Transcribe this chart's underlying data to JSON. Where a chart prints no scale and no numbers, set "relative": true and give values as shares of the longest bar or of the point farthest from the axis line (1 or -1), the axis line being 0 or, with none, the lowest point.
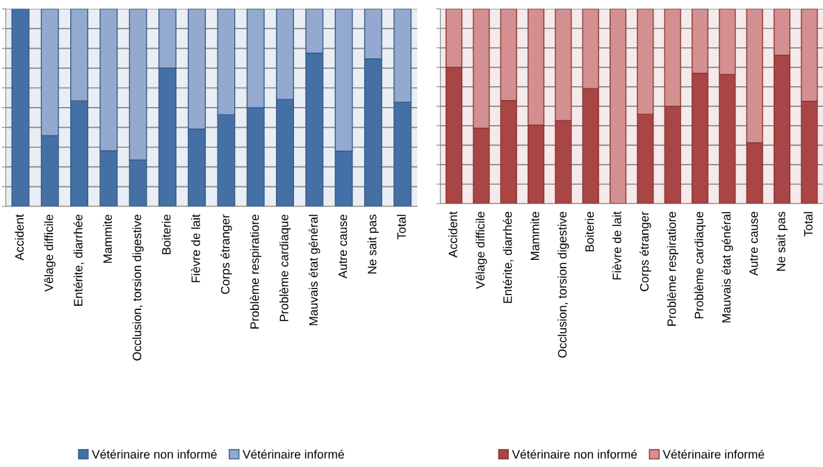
{
  "chart_data": [
    {
      "type": "bar",
      "stacked": true,
      "relative": true,
      "grid": "y",
      "legend": "bottom",
      "tick_labels": "x",
      "categories": [
        "Accident",
        "Vêlage difficile",
        "Entérite, diarrhée",
        "Mammite",
        "Occlusion, torsion digestive",
        "Boiterie",
        "Fièvre de lait",
        "Corps étranger",
        "Problème respiratiore",
        "Problème cardiaque",
        "Mauvais état général",
        "Autre cause",
        "Ne sait pas",
        "Total"
      ],
      "series": [
        {
          "name": "Vétérinaire non informé",
          "color": "#4470a5",
          "values": [
            1.0,
            0.358,
            0.534,
            0.282,
            0.235,
            0.7,
            0.392,
            0.464,
            0.5,
            0.541,
            0.776,
            0.28,
            0.747,
            0.527
          ]
        },
        {
          "name": "Vétérinaire informé",
          "color": "#93a9d0",
          "values": [
            0.0,
            0.642,
            0.466,
            0.718,
            0.765,
            0.3,
            0.608,
            0.536,
            0.5,
            0.459,
            0.224,
            0.72,
            0.253,
            0.473
          ]
        }
      ]
    },
    {
      "type": "bar",
      "stacked": true,
      "relative": true,
      "grid": "y",
      "legend": "bottom",
      "tick_labels": "x",
      "categories": [
        "Accident",
        "Vêlage difficile",
        "Entérite, diarrhée",
        "Mammite",
        "Occlusion, torsion digestive",
        "Boiterie",
        "Fièvre de lait",
        "Corps étranger",
        "Problème respiratiore",
        "Problème cardiaque",
        "Mauvais état général",
        "Autre cause",
        "Ne sait pas",
        "Total"
      ],
      "series": [
        {
          "name": "Vétérinaire non informé",
          "color": "#a94544",
          "values": [
            0.7,
            0.387,
            0.529,
            0.403,
            0.427,
            0.591,
            0.0,
            0.459,
            0.5,
            0.669,
            0.663,
            0.312,
            0.762,
            0.526
          ]
        },
        {
          "name": "Vétérinaire informé",
          "color": "#d49090",
          "values": [
            0.3,
            0.613,
            0.471,
            0.597,
            0.573,
            0.409,
            1.0,
            0.541,
            0.5,
            0.331,
            0.337,
            0.688,
            0.238,
            0.474
          ]
        }
      ]
    }
  ]
}
